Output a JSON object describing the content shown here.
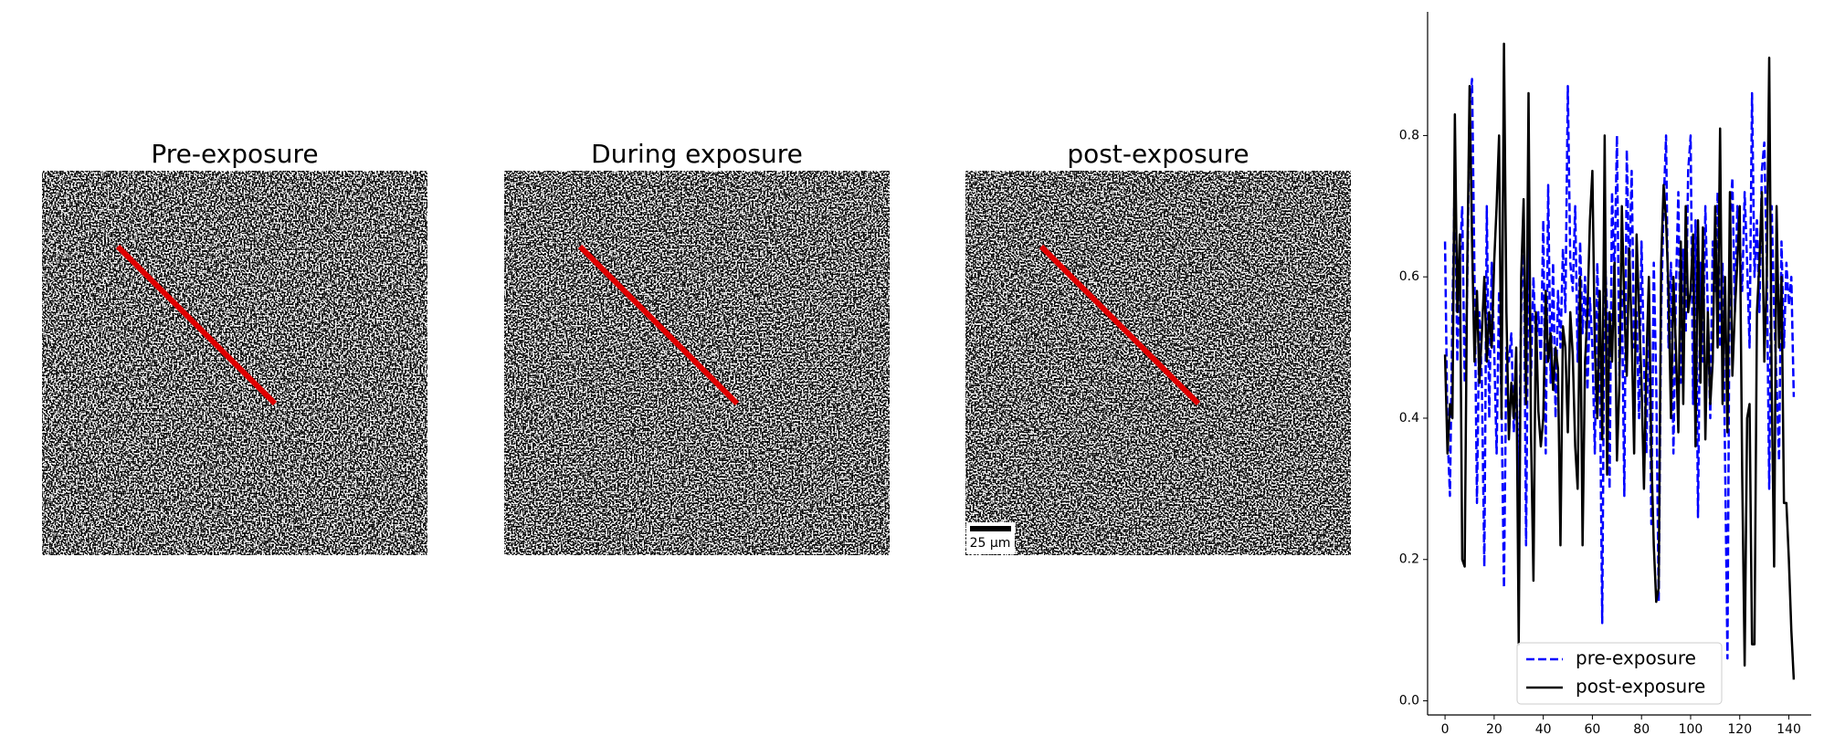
{
  "panels": [
    {
      "title": "Pre-exposure"
    },
    {
      "title": "During exposure"
    },
    {
      "title": "post-exposure"
    }
  ],
  "scale_bar": {
    "label": "25 μm"
  },
  "chart_data": {
    "type": "line",
    "x": [
      0,
      1,
      2,
      3,
      4,
      5,
      6,
      7,
      8,
      9,
      10,
      11,
      12,
      13,
      14,
      15,
      16,
      17,
      18,
      19,
      20,
      21,
      22,
      23,
      24,
      25,
      26,
      27,
      28,
      29,
      30,
      31,
      32,
      33,
      34,
      35,
      36,
      37,
      38,
      39,
      40,
      41,
      42,
      43,
      44,
      45,
      46,
      47,
      48,
      49,
      50,
      51,
      52,
      53,
      54,
      55,
      56,
      57,
      58,
      59,
      60,
      61,
      62,
      63,
      64,
      65,
      66,
      67,
      68,
      69,
      70,
      71,
      72,
      73,
      74,
      75,
      76,
      77,
      78,
      79,
      80,
      81,
      82,
      83,
      84,
      85,
      86,
      87,
      88,
      89,
      90,
      91,
      92,
      93,
      94,
      95,
      96,
      97,
      98,
      99,
      100,
      101,
      102,
      103,
      104,
      105,
      106,
      107,
      108,
      109,
      110,
      111,
      112,
      113,
      114,
      115,
      116,
      117,
      118,
      119,
      120,
      121,
      122,
      123,
      124,
      125,
      126,
      127,
      128,
      129,
      130,
      131,
      132,
      133,
      134,
      135,
      136,
      137,
      138,
      139,
      140,
      141,
      142
    ],
    "series": [
      {
        "name": "pre-exposure",
        "color": "#0000ff",
        "linestyle": "dashed",
        "values": [
          0.65,
          0.38,
          0.29,
          0.55,
          0.75,
          0.48,
          0.62,
          0.7,
          0.45,
          0.58,
          0.84,
          0.88,
          0.6,
          0.28,
          0.55,
          0.45,
          0.19,
          0.7,
          0.4,
          0.62,
          0.5,
          0.35,
          0.58,
          0.42,
          0.16,
          0.5,
          0.48,
          0.52,
          0.38,
          0.45,
          0.3,
          0.55,
          0.7,
          0.22,
          0.65,
          0.46,
          0.6,
          0.5,
          0.55,
          0.48,
          0.68,
          0.35,
          0.73,
          0.45,
          0.62,
          0.4,
          0.58,
          0.5,
          0.64,
          0.55,
          0.87,
          0.62,
          0.58,
          0.7,
          0.48,
          0.65,
          0.52,
          0.6,
          0.44,
          0.57,
          0.5,
          0.35,
          0.62,
          0.48,
          0.11,
          0.64,
          0.55,
          0.3,
          0.72,
          0.6,
          0.8,
          0.46,
          0.58,
          0.29,
          0.78,
          0.6,
          0.75,
          0.5,
          0.55,
          0.4,
          0.65,
          0.48,
          0.35,
          0.58,
          0.25,
          0.62,
          0.45,
          0.14,
          0.55,
          0.7,
          0.8,
          0.5,
          0.62,
          0.35,
          0.58,
          0.72,
          0.45,
          0.64,
          0.52,
          0.75,
          0.8,
          0.42,
          0.68,
          0.26,
          0.62,
          0.48,
          0.7,
          0.55,
          0.4,
          0.65,
          0.58,
          0.72,
          0.5,
          0.62,
          0.35,
          0.06,
          0.68,
          0.74,
          0.55,
          0.7,
          0.65,
          0.58,
          0.72,
          0.62,
          0.5,
          0.86,
          0.6,
          0.68,
          0.55,
          0.75,
          0.79,
          0.62,
          0.3,
          0.7,
          0.55,
          0.45,
          0.34,
          0.65,
          0.5,
          0.62,
          0.56,
          0.6,
          0.43
        ]
      },
      {
        "name": "post-exposure",
        "color": "#000000",
        "linestyle": "solid",
        "values": [
          0.49,
          0.35,
          0.42,
          0.4,
          0.83,
          0.55,
          0.66,
          0.2,
          0.19,
          0.6,
          0.87,
          0.65,
          0.48,
          0.58,
          0.45,
          0.52,
          0.6,
          0.48,
          0.55,
          0.5,
          0.62,
          0.7,
          0.8,
          0.4,
          0.93,
          0.55,
          0.37,
          0.45,
          0.4,
          0.5,
          0.08,
          0.6,
          0.71,
          0.42,
          0.86,
          0.38,
          0.17,
          0.55,
          0.41,
          0.36,
          0.4,
          0.58,
          0.48,
          0.52,
          0.44,
          0.5,
          0.47,
          0.22,
          0.53,
          0.5,
          0.38,
          0.55,
          0.49,
          0.36,
          0.3,
          0.6,
          0.22,
          0.48,
          0.55,
          0.68,
          0.75,
          0.5,
          0.4,
          0.58,
          0.37,
          0.8,
          0.32,
          0.55,
          0.48,
          0.62,
          0.34,
          0.45,
          0.7,
          0.56,
          0.46,
          0.64,
          0.52,
          0.35,
          0.66,
          0.55,
          0.45,
          0.3,
          0.48,
          0.6,
          0.35,
          0.22,
          0.14,
          0.16,
          0.62,
          0.73,
          0.68,
          0.58,
          0.4,
          0.6,
          0.5,
          0.38,
          0.65,
          0.42,
          0.7,
          0.55,
          0.58,
          0.66,
          0.36,
          0.68,
          0.45,
          0.67,
          0.37,
          0.55,
          0.42,
          0.48,
          0.7,
          0.5,
          0.81,
          0.42,
          0.6,
          0.38,
          0.72,
          0.46,
          0.55,
          0.62,
          0.7,
          0.32,
          0.05,
          0.4,
          0.42,
          0.08,
          0.08,
          0.55,
          0.62,
          0.72,
          0.48,
          0.6,
          0.91,
          0.45,
          0.19,
          0.7,
          0.5,
          0.6,
          0.28,
          0.28,
          0.2,
          0.1,
          0.03
        ]
      }
    ],
    "xlim": [
      -7.1,
      149.1
    ],
    "ylim": [
      -0.02,
      0.975
    ],
    "xticks": [
      0,
      20,
      40,
      60,
      80,
      100,
      120,
      140
    ],
    "yticks": [
      {
        "value": 0,
        "label": "0.0"
      },
      0.2,
      0.4,
      0.6,
      0.8
    ],
    "legend": "lower center"
  }
}
